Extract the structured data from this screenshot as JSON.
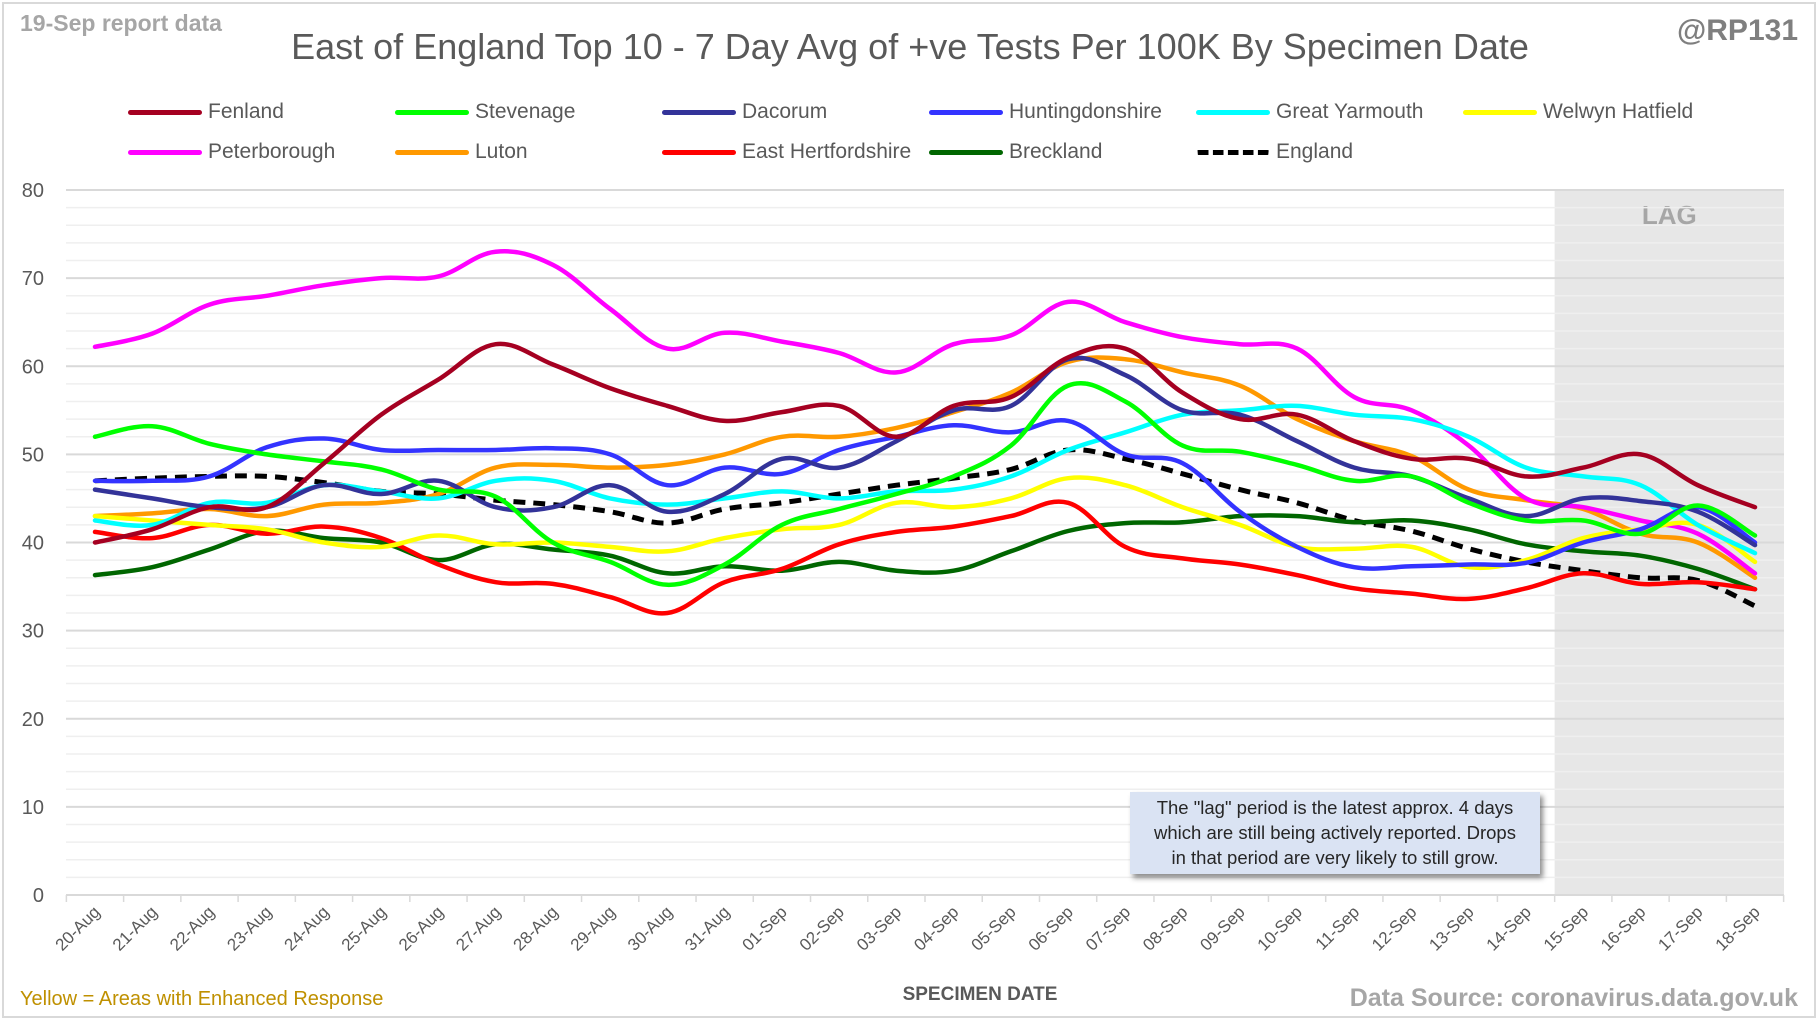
{
  "header": {
    "report_date": "19-Sep report data",
    "handle": "@RP131",
    "title": "East of England Top 10 - 7 Day Avg of +ve Tests Per 100K By Specimen Date"
  },
  "footer": {
    "note": "Yellow = Areas with Enhanced Response",
    "source": "Data Source: coronavirus.data.gov.uk"
  },
  "annotation": {
    "lines": [
      "The \"lag\" period is the latest approx. 4 days",
      "which are still being actively reported.  Drops",
      "in that period are very likely to still grow."
    ]
  },
  "chart_data": {
    "type": "line",
    "title": "East of England Top 10 - 7 Day Avg of +ve Tests Per 100K By Specimen Date",
    "xlabel": "SPECIMEN DATE",
    "ylabel": "",
    "ylim": [
      0,
      80
    ],
    "yticks": [
      0,
      10,
      20,
      30,
      40,
      50,
      60,
      70,
      80
    ],
    "grid": true,
    "legend_position": "top",
    "shaded_region": {
      "label": "LAG",
      "from": "15-Sep",
      "to": "18-Sep"
    },
    "x": [
      "20-Aug",
      "21-Aug",
      "22-Aug",
      "23-Aug",
      "24-Aug",
      "25-Aug",
      "26-Aug",
      "27-Aug",
      "28-Aug",
      "29-Aug",
      "30-Aug",
      "31-Aug",
      "01-Sep",
      "02-Sep",
      "03-Sep",
      "04-Sep",
      "05-Sep",
      "06-Sep",
      "07-Sep",
      "08-Sep",
      "09-Sep",
      "10-Sep",
      "11-Sep",
      "12-Sep",
      "13-Sep",
      "14-Sep",
      "15-Sep",
      "16-Sep",
      "17-Sep",
      "18-Sep"
    ],
    "series": [
      {
        "name": "Fenland",
        "color": "#a50021",
        "dashed": false,
        "values": [
          40.0,
          41.5,
          44.0,
          44.0,
          49.0,
          54.5,
          58.5,
          62.5,
          60.2,
          57.5,
          55.5,
          53.8,
          54.8,
          55.5,
          52.0,
          55.5,
          56.5,
          61.0,
          62.0,
          57.0,
          54.0,
          54.5,
          51.5,
          49.5,
          49.5,
          47.5,
          48.5,
          50.0,
          46.5,
          44.0
        ]
      },
      {
        "name": "Stevenage",
        "color": "#00ff00",
        "dashed": false,
        "values": [
          52.0,
          53.2,
          51.2,
          50.0,
          49.2,
          48.3,
          46.0,
          45.2,
          40.0,
          37.8,
          35.2,
          37.5,
          42.0,
          43.8,
          45.5,
          47.5,
          51.0,
          57.8,
          56.0,
          51.0,
          50.3,
          48.8,
          47.0,
          47.5,
          44.5,
          42.5,
          42.5,
          41.0,
          44.2,
          40.8
        ]
      },
      {
        "name": "Dacorum",
        "color": "#333399",
        "dashed": false,
        "values": [
          46.0,
          45.0,
          44.0,
          44.0,
          46.5,
          45.5,
          47.0,
          44.0,
          44.0,
          46.5,
          43.5,
          45.5,
          49.5,
          48.5,
          51.5,
          55.0,
          55.5,
          60.8,
          59.0,
          55.0,
          54.5,
          51.5,
          48.5,
          47.5,
          45.0,
          43.0,
          45.0,
          44.7,
          43.5,
          39.7
        ]
      },
      {
        "name": "Huntingdonshire",
        "color": "#3333ff",
        "dashed": false,
        "values": [
          47.0,
          47.0,
          47.5,
          50.8,
          51.8,
          50.5,
          50.5,
          50.5,
          50.7,
          50.0,
          46.5,
          48.5,
          47.8,
          50.5,
          52.0,
          53.3,
          52.5,
          53.8,
          50.0,
          49.0,
          43.5,
          39.5,
          37.2,
          37.3,
          37.5,
          37.7,
          40.0,
          41.5,
          44.0,
          40.0
        ]
      },
      {
        "name": "Great Yarmouth",
        "color": "#00ffff",
        "dashed": false,
        "values": [
          42.5,
          42.0,
          44.5,
          44.5,
          46.5,
          45.8,
          45.0,
          47.0,
          47.0,
          45.0,
          44.3,
          45.0,
          45.8,
          45.0,
          45.8,
          46.0,
          47.5,
          50.5,
          52.5,
          54.5,
          55.0,
          55.5,
          54.5,
          54.0,
          52.0,
          48.5,
          47.5,
          46.5,
          42.0,
          38.8
        ]
      },
      {
        "name": "Welwyn Hatfield",
        "color": "#ffff00",
        "dashed": false,
        "values": [
          43.0,
          42.5,
          42.0,
          41.5,
          40.0,
          39.5,
          40.8,
          39.8,
          40.0,
          39.5,
          39.0,
          40.5,
          41.5,
          42.0,
          44.5,
          44.0,
          45.0,
          47.3,
          46.5,
          44.0,
          42.0,
          39.5,
          39.3,
          39.5,
          37.2,
          38.0,
          40.5,
          41.5,
          42.0,
          37.8
        ]
      },
      {
        "name": "Peterborough",
        "color": "#ff00ff",
        "dashed": false,
        "values": [
          62.2,
          63.7,
          67.0,
          68.0,
          69.2,
          70.0,
          70.2,
          73.0,
          71.5,
          66.5,
          62.0,
          63.8,
          62.8,
          61.5,
          59.3,
          62.5,
          63.5,
          67.3,
          65.0,
          63.3,
          62.5,
          62.0,
          56.5,
          55.0,
          51.0,
          45.0,
          44.0,
          42.5,
          41.0,
          36.5
        ]
      },
      {
        "name": "Luton",
        "color": "#ff9900",
        "dashed": false,
        "values": [
          43.0,
          43.3,
          43.8,
          43.0,
          44.3,
          44.5,
          45.5,
          48.5,
          48.8,
          48.5,
          48.8,
          50.0,
          52.0,
          52.0,
          53.0,
          54.8,
          57.0,
          60.5,
          60.8,
          59.3,
          57.8,
          54.0,
          51.5,
          49.8,
          46.0,
          44.8,
          43.8,
          41.0,
          40.0,
          36.0
        ]
      },
      {
        "name": "East Hertfordshire",
        "color": "#ff0000",
        "dashed": false,
        "values": [
          41.2,
          40.5,
          42.0,
          41.0,
          41.8,
          40.5,
          37.5,
          35.5,
          35.3,
          33.8,
          32.0,
          35.5,
          37.0,
          39.8,
          41.2,
          41.8,
          43.0,
          44.5,
          39.5,
          38.2,
          37.5,
          36.3,
          34.8,
          34.2,
          33.6,
          34.8,
          36.5,
          35.3,
          35.5,
          34.7
        ]
      },
      {
        "name": "Breckland",
        "color": "#006600",
        "dashed": false,
        "values": [
          36.3,
          37.2,
          39.2,
          41.3,
          40.5,
          40.0,
          38.0,
          39.8,
          39.2,
          38.5,
          36.5,
          37.3,
          36.8,
          37.8,
          36.8,
          36.8,
          39.0,
          41.3,
          42.2,
          42.3,
          43.0,
          43.0,
          42.3,
          42.5,
          41.5,
          39.8,
          39.0,
          38.5,
          37.0,
          34.7
        ]
      },
      {
        "name": "England",
        "color": "#000000",
        "dashed": true,
        "values": [
          47.0,
          47.3,
          47.5,
          47.5,
          46.8,
          45.8,
          45.5,
          44.8,
          44.3,
          43.5,
          42.2,
          43.8,
          44.5,
          45.5,
          46.5,
          47.3,
          48.3,
          50.5,
          49.5,
          47.8,
          46.0,
          44.5,
          42.5,
          41.3,
          39.3,
          37.8,
          36.8,
          36.0,
          35.7,
          32.8
        ]
      }
    ]
  }
}
